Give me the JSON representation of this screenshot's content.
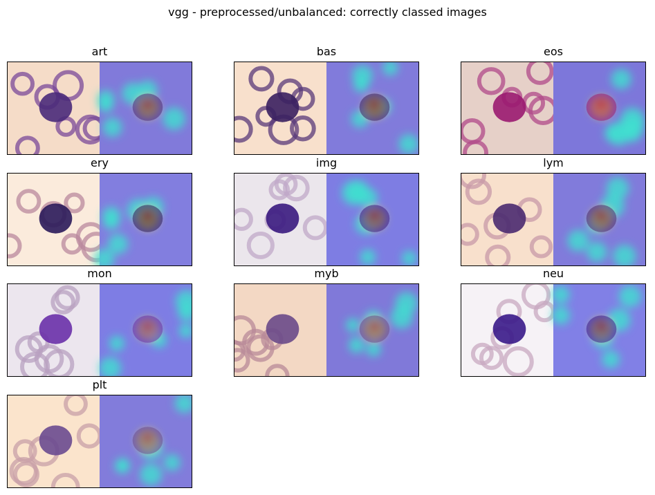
{
  "figure": {
    "title": "vgg - preprocessed/unbalanced: correctly classed images"
  },
  "panels": [
    {
      "label": "art",
      "bg": "#f5dcc8",
      "cell": "#7a4a9a",
      "nucleus": "#4a2a7a"
    },
    {
      "label": "bas",
      "bg": "#f8e0cc",
      "cell": "#5a3a7a",
      "nucleus": "#3a2060"
    },
    {
      "label": "eos",
      "bg": "#e6d0c8",
      "cell": "#b04a8a",
      "nucleus": "#9a1a70"
    },
    {
      "label": "ery",
      "bg": "#fbebdc",
      "cell": "#b9889e",
      "nucleus": "#2a1a5a"
    },
    {
      "label": "img",
      "bg": "#ebe6ec",
      "cell": "#c0a8c8",
      "nucleus": "#3a1a80"
    },
    {
      "label": "lym",
      "bg": "#f8e0cc",
      "cell": "#c89aa8",
      "nucleus": "#4a2a70"
    },
    {
      "label": "mon",
      "bg": "#ece6ee",
      "cell": "#b8a0c0",
      "nucleus": "#6a30a8"
    },
    {
      "label": "myb",
      "bg": "#f3d8c4",
      "cell": "#b88a98",
      "nucleus": "#6a4a8a"
    },
    {
      "label": "neu",
      "bg": "#f6f2f6",
      "cell": "#c8a8c0",
      "nucleus": "#3a1a8a"
    },
    {
      "label": "plt",
      "bg": "#fbe4cc",
      "cell": "#c8a0a8",
      "nucleus": "#6a4a90"
    }
  ]
}
